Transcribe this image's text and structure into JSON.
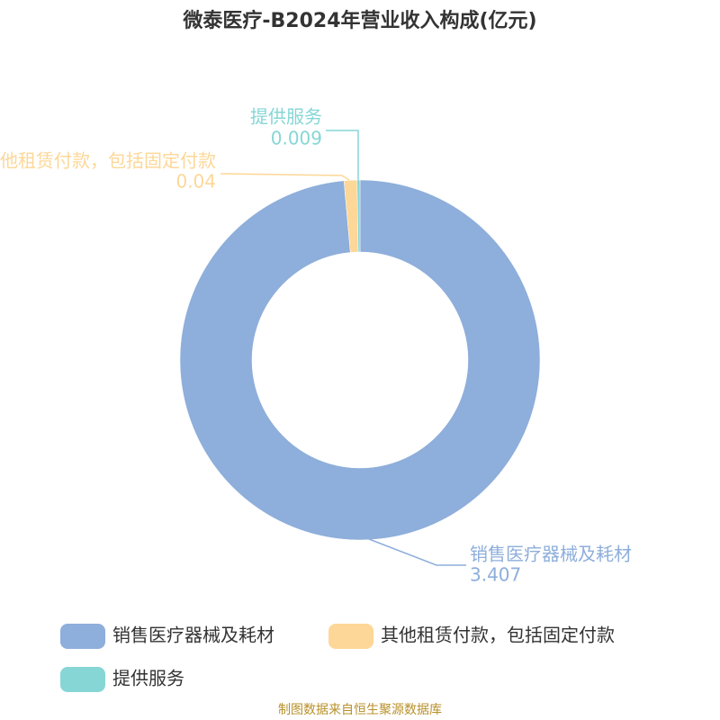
{
  "chart_data": {
    "type": "donut",
    "title": "微泰医疗-B2024年营业收入构成(亿元)",
    "categories": [
      "销售医疗器械及耗材",
      "其他租赁付款，包括固定付款",
      "提供服务"
    ],
    "values": [
      3.407,
      0.04,
      0.009
    ],
    "colors": [
      "#8eaedb",
      "#fdd797",
      "#86d6d6"
    ],
    "legend": "bottom",
    "source": "制图数据来自恒生聚源数据库"
  }
}
